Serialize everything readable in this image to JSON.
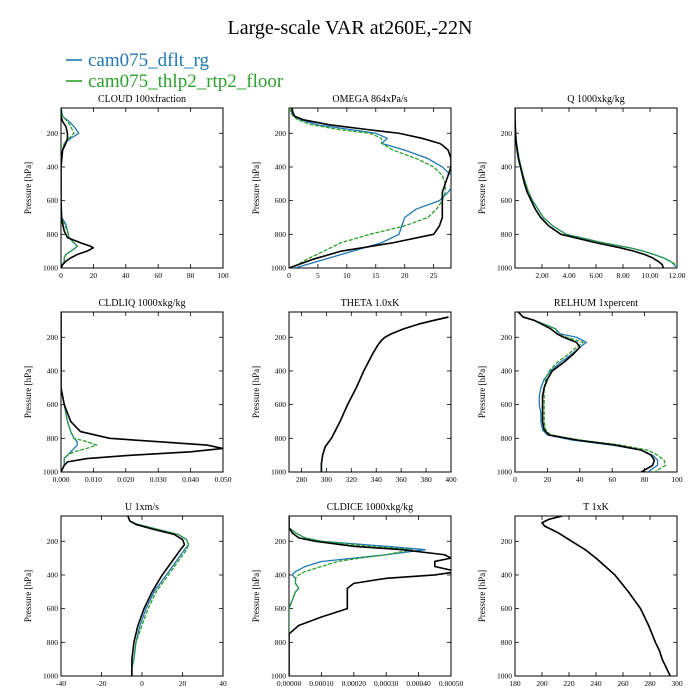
{
  "title": "Large-scale VAR at260E,-22N",
  "legend": [
    {
      "label": "cam075_dflt_rg",
      "color": "#1f77b4"
    },
    {
      "label": "cam075_thlp2_rtp2_floor",
      "color": "#2ca02c"
    }
  ],
  "ylabel": "Pressure [hPa]",
  "chart_data": [
    {
      "type": "line",
      "title": "CLOUD  100xfraction",
      "xlim": [
        0,
        100
      ],
      "ylim": [
        1000,
        50
      ],
      "xticks": [
        "0",
        "20",
        "40",
        "60",
        "80",
        "100"
      ],
      "yticks": [
        "200",
        "400",
        "600",
        "800",
        "1000"
      ],
      "pressure": [
        50,
        100,
        130,
        160,
        200,
        230,
        260,
        300,
        400,
        500,
        600,
        700,
        740,
        780,
        820,
        850,
        870,
        880,
        900,
        920,
        940,
        960,
        980,
        1000
      ],
      "series": [
        {
          "name": "cam075_dflt_rg",
          "values": [
            0,
            1,
            5,
            8,
            11,
            6,
            2,
            1,
            0,
            0,
            0,
            0.5,
            3,
            4,
            5,
            8,
            10,
            9,
            6,
            3,
            2,
            2,
            1,
            0
          ]
        },
        {
          "name": "cam075_thlp2_rtp2_floor",
          "values": [
            0,
            1,
            4,
            6,
            8,
            5,
            2,
            1,
            0,
            0,
            0,
            0.5,
            2,
            4,
            5,
            8,
            10,
            9,
            6,
            3,
            2,
            2,
            1,
            0
          ]
        },
        {
          "name": "",
          "values": [
            0,
            0,
            1,
            3,
            4,
            4,
            3,
            1,
            0,
            0,
            0,
            0.3,
            1,
            2,
            4,
            12,
            18,
            20,
            16,
            10,
            6,
            3,
            1,
            0
          ]
        }
      ]
    },
    {
      "type": "line",
      "title": "OMEGA  864xPa/s",
      "xlim": [
        0,
        28
      ],
      "ylim": [
        1000,
        50
      ],
      "xticks": [
        "0",
        "5",
        "10",
        "15",
        "20",
        "25"
      ],
      "yticks": [
        "200",
        "400",
        "600",
        "800",
        "1000"
      ],
      "pressure": [
        50,
        80,
        100,
        120,
        150,
        180,
        200,
        230,
        260,
        270,
        300,
        350,
        400,
        450,
        500,
        550,
        600,
        650,
        700,
        750,
        800,
        850,
        900,
        950,
        1000
      ],
      "series": [
        {
          "name": "cam075_dflt_rg",
          "values": [
            0.5,
            0.5,
            1,
            2,
            5,
            11,
            15,
            17,
            16,
            17,
            20,
            24,
            26.5,
            28,
            28.5,
            27.5,
            26,
            22,
            20,
            19.5,
            19,
            16,
            11,
            6,
            1
          ]
        },
        {
          "name": "cam075_thlp2_rtp2_floor",
          "values": [
            0.3,
            0.3,
            0.8,
            1.5,
            4,
            9,
            14,
            16,
            16,
            16.5,
            18,
            22,
            25,
            26.5,
            27,
            27,
            26.5,
            25.5,
            24,
            20,
            14,
            9,
            6,
            3,
            0.5
          ]
        },
        {
          "name": "",
          "values": [
            0.5,
            0.7,
            1,
            2.5,
            7,
            14,
            19,
            23,
            26,
            26.5,
            27.5,
            28,
            28,
            27.5,
            27,
            26.5,
            26.5,
            26.5,
            26.5,
            26,
            25,
            18,
            9,
            4,
            0
          ]
        }
      ]
    },
    {
      "type": "line",
      "title": "Q  1000xkg/kg",
      "xlim": [
        0,
        12
      ],
      "ylim": [
        1000,
        50
      ],
      "xticks": [
        "2.00",
        "4.00",
        "6.00",
        "8.00",
        "10.00",
        "12.00"
      ],
      "yticks": [
        "200",
        "400",
        "600",
        "800",
        "1000"
      ],
      "pressure": [
        50,
        100,
        150,
        200,
        250,
        300,
        350,
        400,
        450,
        500,
        550,
        600,
        650,
        700,
        750,
        800,
        850,
        880,
        900,
        920,
        940,
        960,
        980,
        1000
      ],
      "series": [
        {
          "name": "cam075_dflt_rg",
          "values": [
            0,
            0,
            0.02,
            0.05,
            0.1,
            0.2,
            0.3,
            0.45,
            0.6,
            0.8,
            1.0,
            1.3,
            1.7,
            2.1,
            2.8,
            3.8,
            6.5,
            8.5,
            9.5,
            10.3,
            11.0,
            11.5,
            11.8,
            12.0
          ]
        },
        {
          "name": "cam075_thlp2_rtp2_floor",
          "values": [
            0,
            0,
            0.02,
            0.05,
            0.1,
            0.2,
            0.3,
            0.45,
            0.6,
            0.8,
            1.0,
            1.3,
            1.7,
            2.1,
            2.8,
            3.8,
            6.5,
            8.5,
            9.5,
            10.3,
            11.0,
            11.5,
            11.9,
            12.1
          ]
        },
        {
          "name": "",
          "values": [
            0,
            0,
            0.02,
            0.04,
            0.08,
            0.15,
            0.25,
            0.4,
            0.55,
            0.7,
            0.9,
            1.2,
            1.5,
            1.9,
            2.5,
            3.4,
            6.0,
            7.8,
            8.8,
            9.6,
            10.2,
            10.6,
            10.9,
            11.0
          ]
        }
      ]
    },
    {
      "type": "line",
      "title": "CLDLIQ  1000xkg/kg",
      "xlim": [
        0,
        0.05
      ],
      "ylim": [
        1000,
        50
      ],
      "xticks": [
        "0.000",
        "0.010",
        "0.020",
        "0.030",
        "0.040",
        "0.050"
      ],
      "yticks": [
        "200",
        "400",
        "600",
        "800",
        "1000"
      ],
      "pressure": [
        50,
        500,
        600,
        700,
        760,
        800,
        820,
        840,
        860,
        880,
        900,
        920,
        940,
        960,
        980,
        1000
      ],
      "series": [
        {
          "name": "cam075_dflt_rg",
          "values": [
            0,
            0,
            0.001,
            0.002,
            0.003,
            0.004,
            0.005,
            0.005,
            0.004,
            0.003,
            0.002,
            0.001,
            0.001,
            0.001,
            0.0005,
            0
          ]
        },
        {
          "name": "cam075_thlp2_rtp2_floor",
          "values": [
            0,
            0,
            0.001,
            0.002,
            0.003,
            0.004,
            0.008,
            0.011,
            0.008,
            0.004,
            0.002,
            0.001,
            0.001,
            0.001,
            0.0005,
            0
          ]
        },
        {
          "name": "",
          "values": [
            0,
            0,
            0.001,
            0.003,
            0.006,
            0.015,
            0.03,
            0.045,
            0.05,
            0.04,
            0.022,
            0.008,
            0.002,
            0.001,
            0.0005,
            0
          ]
        }
      ]
    },
    {
      "type": "line",
      "title": "THETA  1.0xK",
      "xlim": [
        270,
        400
      ],
      "ylim": [
        1000,
        50
      ],
      "xticks": [
        "280",
        "300",
        "320",
        "340",
        "360",
        "380",
        "400"
      ],
      "yticks": [
        "200",
        "400",
        "600",
        "800",
        "1000"
      ],
      "pressure": [
        80,
        100,
        120,
        150,
        180,
        200,
        220,
        250,
        300,
        400,
        500,
        600,
        700,
        800,
        850,
        900,
        950,
        1000
      ],
      "series": [
        {
          "name": "cam075_dflt_rg",
          "values": [
            398,
            386,
            375,
            362,
            352,
            347,
            344,
            341,
            337,
            330,
            324,
            317,
            311,
            304,
            299,
            297,
            296,
            296
          ]
        },
        {
          "name": "cam075_thlp2_rtp2_floor",
          "values": [
            398,
            386,
            375,
            362,
            352,
            347,
            344,
            341,
            337,
            330,
            324,
            317,
            311,
            304,
            299,
            297,
            296,
            296
          ]
        },
        {
          "name": "",
          "values": [
            398,
            386,
            375,
            362,
            352,
            347,
            344,
            341,
            337,
            330,
            324,
            317,
            311,
            304,
            299,
            297,
            296,
            296
          ]
        }
      ]
    },
    {
      "type": "line",
      "title": "RELHUM  1xpercent",
      "xlim": [
        0,
        100
      ],
      "ylim": [
        1000,
        50
      ],
      "xticks": [
        "0",
        "20",
        "40",
        "60",
        "80",
        "100"
      ],
      "yticks": [
        "200",
        "400",
        "600",
        "800",
        "1000"
      ],
      "pressure": [
        50,
        80,
        100,
        130,
        150,
        180,
        200,
        230,
        260,
        300,
        350,
        400,
        450,
        500,
        550,
        600,
        650,
        700,
        750,
        780,
        810,
        840,
        870,
        900,
        930,
        960,
        1000
      ],
      "series": [
        {
          "name": "cam075_dflt_rg",
          "values": [
            2,
            5,
            12,
            20,
            25,
            28,
            38,
            44,
            40,
            35,
            28,
            22,
            18,
            16,
            15,
            15,
            16,
            16,
            17,
            20,
            35,
            60,
            78,
            85,
            88,
            88,
            82
          ]
        },
        {
          "name": "cam075_thlp2_rtp2_floor",
          "values": [
            2,
            5,
            12,
            20,
            25,
            26,
            32,
            42,
            38,
            33,
            26,
            21,
            19,
            18,
            18,
            18,
            18,
            18,
            19,
            22,
            40,
            65,
            82,
            88,
            92,
            93,
            86
          ]
        },
        {
          "name": "",
          "values": [
            2,
            5,
            12,
            18,
            22,
            26,
            30,
            38,
            40,
            36,
            30,
            23,
            20,
            18,
            17,
            17,
            17,
            17,
            18,
            21,
            38,
            62,
            78,
            84,
            86,
            85,
            78
          ]
        }
      ]
    },
    {
      "type": "line",
      "title": "U  1xm/s",
      "xlim": [
        -40,
        40
      ],
      "ylim": [
        1000,
        50
      ],
      "xticks": [
        "-40",
        "-20",
        "0",
        "20",
        "40"
      ],
      "yticks": [
        "200",
        "400",
        "600",
        "800",
        "1000"
      ],
      "pressure": [
        50,
        80,
        100,
        130,
        160,
        190,
        220,
        250,
        300,
        400,
        500,
        600,
        700,
        800,
        900,
        950,
        1000
      ],
      "series": [
        {
          "name": "cam075_dflt_rg",
          "values": [
            -7,
            -6,
            -2,
            8,
            18,
            22,
            23,
            21,
            18,
            12,
            6,
            2,
            -1,
            -3,
            -4,
            -5,
            -5
          ]
        },
        {
          "name": "cam075_thlp2_rtp2_floor",
          "values": [
            -7,
            -6,
            -2,
            8,
            18,
            22,
            23,
            22,
            19,
            13,
            7,
            3,
            0,
            -3,
            -4,
            -5,
            -5
          ]
        },
        {
          "name": "",
          "values": [
            -7,
            -6,
            -3,
            6,
            16,
            20,
            21,
            19,
            16,
            10,
            5,
            1,
            -2,
            -4,
            -5,
            -5,
            -5
          ]
        }
      ]
    },
    {
      "type": "line",
      "title": "CLDICE  1000xkg/kg",
      "xlim": [
        0,
        0.0005
      ],
      "ylim": [
        1000,
        50
      ],
      "xticks": [
        "0.00000",
        "0.00010",
        "0.00020",
        "0.00030",
        "0.00040",
        "0.00050"
      ],
      "yticks": [
        "200",
        "400",
        "600",
        "800",
        "1000"
      ],
      "pressure": [
        50,
        120,
        150,
        180,
        200,
        230,
        250,
        280,
        300,
        320,
        350,
        380,
        400,
        420,
        450,
        480,
        500,
        550,
        600,
        650,
        700,
        750,
        1000
      ],
      "series": [
        {
          "name": "cam075_dflt_rg",
          "values": [
            0,
            0,
            2e-05,
            5e-05,
            0.0001,
            0.0003,
            0.00042,
            0.0003,
            0.0002,
            0.0001,
            5e-05,
            2e-05,
            1e-05,
            2e-05,
            2e-05,
            3e-05,
            2e-05,
            1e-05,
            0,
            0,
            0,
            0,
            0
          ]
        },
        {
          "name": "cam075_thlp2_rtp2_floor",
          "values": [
            0,
            0,
            2e-05,
            5e-05,
            0.0001,
            0.00025,
            0.00038,
            0.0003,
            0.00022,
            0.00015,
            0.0001,
            5e-05,
            3e-05,
            2e-05,
            2e-05,
            3e-05,
            2e-05,
            1e-05,
            0,
            0,
            0,
            0,
            0
          ]
        },
        {
          "name": "",
          "values": [
            0,
            0,
            1e-05,
            3e-05,
            8e-05,
            0.0002,
            0.00035,
            0.00048,
            0.0005,
            0.00045,
            0.00045,
            0.00052,
            0.00045,
            0.0003,
            0.0002,
            0.00018,
            0.00018,
            0.00018,
            0.00018,
            0.0001,
            3e-05,
            0,
            0
          ]
        }
      ]
    },
    {
      "type": "line",
      "title": "T  1xK",
      "xlim": [
        180,
        300
      ],
      "ylim": [
        1000,
        50
      ],
      "xticks": [
        "180",
        "200",
        "220",
        "240",
        "260",
        "280",
        "300"
      ],
      "yticks": [
        "200",
        "400",
        "600",
        "800",
        "1000"
      ],
      "pressure": [
        50,
        70,
        90,
        110,
        150,
        200,
        250,
        300,
        400,
        500,
        600,
        700,
        800,
        850,
        900,
        950,
        1000
      ],
      "series": [
        {
          "name": "cam075_dflt_rg",
          "values": [
            215,
            205,
            200,
            202,
            212,
            222,
            232,
            240,
            254,
            264,
            273,
            279,
            284,
            287,
            289,
            292,
            295
          ]
        },
        {
          "name": "cam075_thlp2_rtp2_floor",
          "values": [
            215,
            205,
            200,
            202,
            212,
            222,
            232,
            240,
            254,
            264,
            273,
            279,
            284,
            287,
            289,
            292,
            295
          ]
        },
        {
          "name": "",
          "values": [
            215,
            205,
            200,
            202,
            212,
            222,
            232,
            240,
            254,
            264,
            273,
            279,
            284,
            287,
            289,
            292,
            295
          ]
        }
      ]
    }
  ]
}
